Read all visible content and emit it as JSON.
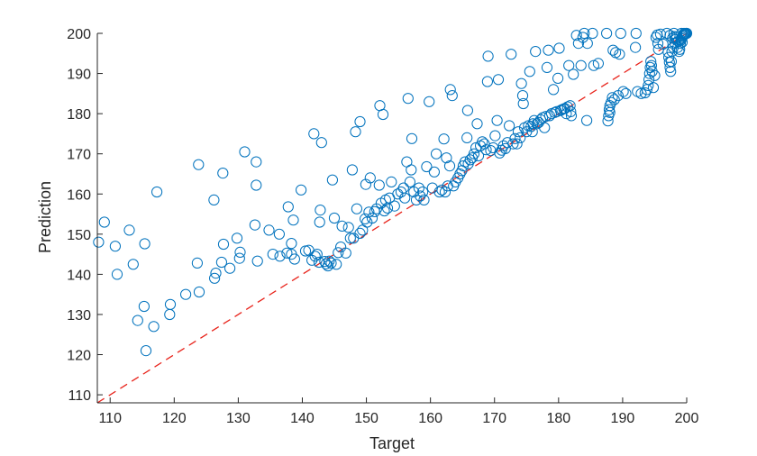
{
  "chart_data": {
    "type": "scatter",
    "xlabel": "Target",
    "ylabel": "Prediction",
    "xlim": [
      108,
      200
    ],
    "ylim": [
      108,
      200
    ],
    "xticks": [
      110,
      120,
      130,
      140,
      150,
      160,
      170,
      180,
      190,
      200
    ],
    "yticks": [
      110,
      120,
      130,
      140,
      150,
      160,
      170,
      180,
      190,
      200
    ],
    "grid": false,
    "marker_color": "#0072BD",
    "reference_line": {
      "style": "dashed",
      "color": "#e8221a",
      "from": [
        108,
        108
      ],
      "to": [
        200,
        200
      ]
    },
    "series": [
      {
        "points": [
          [
            108.2,
            148
          ],
          [
            109.1,
            153
          ],
          [
            110.8,
            147
          ],
          [
            111.1,
            140
          ],
          [
            113,
            151
          ],
          [
            113.6,
            142.5
          ],
          [
            114.3,
            128.5
          ],
          [
            115.4,
            147.6
          ],
          [
            115.3,
            132
          ],
          [
            115.6,
            121
          ],
          [
            116.8,
            127
          ],
          [
            117.3,
            160.5
          ],
          [
            119.3,
            130
          ],
          [
            119.4,
            132.5
          ],
          [
            121.8,
            135
          ],
          [
            123.6,
            142.8
          ],
          [
            123.8,
            167.3
          ],
          [
            123.9,
            135.6
          ],
          [
            126.2,
            158.5
          ],
          [
            126.3,
            139
          ],
          [
            126.5,
            140.3
          ],
          [
            127.4,
            143
          ],
          [
            127.6,
            165.2
          ],
          [
            127.7,
            147.5
          ],
          [
            128.7,
            141.5
          ],
          [
            129.8,
            149
          ],
          [
            130.2,
            144
          ],
          [
            130.3,
            145.5
          ],
          [
            131,
            170.5
          ],
          [
            132.6,
            152.3
          ],
          [
            132.8,
            168
          ],
          [
            132.8,
            162.2
          ],
          [
            133,
            143.3
          ],
          [
            134.8,
            151
          ],
          [
            135.4,
            145
          ],
          [
            136.4,
            150
          ],
          [
            136.5,
            144.5
          ],
          [
            137.6,
            145.3
          ],
          [
            137.8,
            156.8
          ],
          [
            138.3,
            147.7
          ],
          [
            138.6,
            153.5
          ],
          [
            138.3,
            145
          ],
          [
            138.8,
            143.8
          ],
          [
            139.8,
            161
          ],
          [
            140.5,
            145.8
          ],
          [
            141,
            146
          ],
          [
            141.5,
            143.5
          ],
          [
            141.8,
            175
          ],
          [
            142,
            144.5
          ],
          [
            142.3,
            145
          ],
          [
            142.6,
            143
          ],
          [
            142.7,
            153
          ],
          [
            142.8,
            156
          ],
          [
            143,
            172.8
          ],
          [
            143.5,
            143.2
          ],
          [
            143.7,
            142.6
          ],
          [
            144,
            142.1
          ],
          [
            144.2,
            143.3
          ],
          [
            144.5,
            142.8
          ],
          [
            144.7,
            163.5
          ],
          [
            145,
            154
          ],
          [
            145.3,
            142.5
          ],
          [
            145.6,
            145.4
          ],
          [
            146,
            146.8
          ],
          [
            146.2,
            152
          ],
          [
            146.8,
            145.3
          ],
          [
            147.2,
            151.7
          ],
          [
            147.5,
            149
          ],
          [
            147.8,
            166
          ],
          [
            148,
            149
          ],
          [
            148.3,
            175.5
          ],
          [
            148.5,
            156.3
          ],
          [
            149,
            178
          ],
          [
            149,
            150.2
          ],
          [
            149.4,
            151
          ],
          [
            149.8,
            153.8
          ],
          [
            149.9,
            162.4
          ],
          [
            150.1,
            153
          ],
          [
            150.4,
            155.5
          ],
          [
            150.6,
            164
          ],
          [
            150.9,
            154
          ],
          [
            151.3,
            155.6
          ],
          [
            151.6,
            156.3
          ],
          [
            152,
            162.2
          ],
          [
            152.1,
            182
          ],
          [
            152.3,
            157.7
          ],
          [
            152.6,
            179.8
          ],
          [
            152.8,
            155.8
          ],
          [
            153,
            158.5
          ],
          [
            153.3,
            156.5
          ],
          [
            153.6,
            159
          ],
          [
            153.9,
            163
          ],
          [
            154.4,
            157
          ],
          [
            154.9,
            160
          ],
          [
            155.4,
            160.5
          ],
          [
            155.8,
            161.5
          ],
          [
            156,
            159
          ],
          [
            156.3,
            168
          ],
          [
            156.5,
            183.8
          ],
          [
            156.8,
            163
          ],
          [
            157,
            166
          ],
          [
            157.1,
            173.8
          ],
          [
            157.4,
            160.5
          ],
          [
            157.8,
            158.5
          ],
          [
            158.2,
            161.5
          ],
          [
            158.4,
            159.5
          ],
          [
            158.8,
            160.5
          ],
          [
            159,
            158.5
          ],
          [
            159.4,
            166.8
          ],
          [
            159.8,
            183
          ],
          [
            160.3,
            161.5
          ],
          [
            160.6,
            165.5
          ],
          [
            160.9,
            170
          ],
          [
            161.4,
            160.5
          ],
          [
            161.8,
            161
          ],
          [
            162.1,
            173.7
          ],
          [
            162.3,
            160.5
          ],
          [
            162.5,
            169
          ],
          [
            162.7,
            162
          ],
          [
            163,
            167
          ],
          [
            163.1,
            186
          ],
          [
            163.4,
            184.5
          ],
          [
            163.6,
            162
          ],
          [
            163.9,
            163
          ],
          [
            164.3,
            164
          ],
          [
            164.6,
            165
          ],
          [
            164.9,
            165.8
          ],
          [
            165.1,
            167
          ],
          [
            165.4,
            168
          ],
          [
            165.7,
            174
          ],
          [
            165.8,
            180.8
          ],
          [
            165.9,
            167.5
          ],
          [
            166.2,
            168.5
          ],
          [
            166.5,
            169
          ],
          [
            166.8,
            170
          ],
          [
            167.1,
            171.5
          ],
          [
            167.3,
            177.5
          ],
          [
            167.5,
            169.5
          ],
          [
            167.8,
            172
          ],
          [
            168.1,
            173
          ],
          [
            168.4,
            172.5
          ],
          [
            168.7,
            171
          ],
          [
            168.9,
            188
          ],
          [
            169,
            194.3
          ],
          [
            169.4,
            170.8
          ],
          [
            169.8,
            171.5
          ],
          [
            170.1,
            174.5
          ],
          [
            170.4,
            178.3
          ],
          [
            170.6,
            188.5
          ],
          [
            170.8,
            170.2
          ],
          [
            171.1,
            170.9
          ],
          [
            171.4,
            172
          ],
          [
            171.7,
            171.3
          ],
          [
            172,
            172.8
          ],
          [
            172.3,
            177
          ],
          [
            172.6,
            194.8
          ],
          [
            172.9,
            172.5
          ],
          [
            173.2,
            173.8
          ],
          [
            173.5,
            172.5
          ],
          [
            173.7,
            175.5
          ],
          [
            174,
            174
          ],
          [
            174.2,
            187.5
          ],
          [
            174.4,
            184.5
          ],
          [
            174.5,
            182.5
          ],
          [
            174.7,
            176.5
          ],
          [
            175,
            175.5
          ],
          [
            175.3,
            177
          ],
          [
            175.5,
            190.5
          ],
          [
            175.7,
            176.8
          ],
          [
            175.9,
            175.5
          ],
          [
            176,
            177.5
          ],
          [
            176.2,
            178.3
          ],
          [
            176.4,
            195.5
          ],
          [
            176.6,
            177.5
          ],
          [
            176.9,
            177.8
          ],
          [
            177.2,
            178.5
          ],
          [
            177.5,
            179
          ],
          [
            177.8,
            176.5
          ],
          [
            178,
            179.3
          ],
          [
            178.2,
            191.5
          ],
          [
            178.4,
            195.8
          ],
          [
            178.6,
            179.5
          ],
          [
            178.9,
            180
          ],
          [
            179.2,
            186
          ],
          [
            179.4,
            180.3
          ],
          [
            179.7,
            180.5
          ],
          [
            179.9,
            188.8
          ],
          [
            180.1,
            196.3
          ],
          [
            180.3,
            180.8
          ],
          [
            180.5,
            181
          ],
          [
            180.8,
            181.2
          ],
          [
            181,
            181.3
          ],
          [
            181.2,
            180
          ],
          [
            181.4,
            181.7
          ],
          [
            181.6,
            192
          ],
          [
            181.8,
            182
          ],
          [
            181.9,
            180.5
          ],
          [
            182,
            179.5
          ],
          [
            182.3,
            189.8
          ],
          [
            182.8,
            199.5
          ],
          [
            183.1,
            197.5
          ],
          [
            183.5,
            192
          ],
          [
            183.8,
            199
          ],
          [
            184,
            200
          ],
          [
            184.4,
            178.3
          ],
          [
            184.5,
            197.5
          ],
          [
            185.3,
            200
          ],
          [
            185.5,
            192
          ],
          [
            186.2,
            192.5
          ],
          [
            187.5,
            200
          ],
          [
            187.7,
            178.2
          ],
          [
            187.8,
            179.5
          ],
          [
            187.9,
            181
          ],
          [
            188,
            182
          ],
          [
            188,
            180.3
          ],
          [
            188.2,
            182.8
          ],
          [
            188.5,
            195.8
          ],
          [
            188.4,
            184
          ],
          [
            188.7,
            183.5
          ],
          [
            188.9,
            195.2
          ],
          [
            189.3,
            184.5
          ],
          [
            189.5,
            194.8
          ],
          [
            189.7,
            200
          ],
          [
            190.1,
            185.5
          ],
          [
            190.5,
            185
          ],
          [
            192,
            196.5
          ],
          [
            192.1,
            200
          ],
          [
            192.3,
            185.5
          ],
          [
            192.9,
            185
          ],
          [
            193.5,
            185.2
          ],
          [
            193.8,
            186
          ],
          [
            194,
            187
          ],
          [
            194.1,
            188.5
          ],
          [
            194.2,
            190
          ],
          [
            194.3,
            191.5
          ],
          [
            194.4,
            193
          ],
          [
            194.5,
            192
          ],
          [
            194.6,
            190.5
          ],
          [
            194.8,
            186.5
          ],
          [
            195,
            189.5
          ],
          [
            195.2,
            199
          ],
          [
            195.4,
            199.6
          ],
          [
            195.5,
            197.5
          ],
          [
            195.6,
            196
          ],
          [
            195.9,
            199.8
          ],
          [
            196.3,
            197.3
          ],
          [
            196.9,
            200
          ],
          [
            197.1,
            195.3
          ],
          [
            197.2,
            194
          ],
          [
            197.3,
            192.8
          ],
          [
            197.4,
            191.5
          ],
          [
            197.5,
            190.5
          ],
          [
            197.6,
            193
          ],
          [
            197.7,
            195.5
          ],
          [
            197.9,
            196.5
          ],
          [
            198,
            200
          ],
          [
            198.2,
            197.5
          ],
          [
            198.3,
            198.5
          ],
          [
            198.4,
            199
          ],
          [
            198.6,
            196.5
          ],
          [
            198.8,
            195.5
          ],
          [
            198.9,
            196
          ],
          [
            199,
            197.5
          ],
          [
            199.1,
            198.3
          ],
          [
            199.2,
            198.7
          ],
          [
            199.3,
            199
          ],
          [
            199.4,
            199.3
          ],
          [
            199.5,
            199.5
          ],
          [
            199.6,
            199.7
          ],
          [
            199.7,
            199.8
          ],
          [
            199.8,
            199.9
          ],
          [
            199.9,
            200
          ],
          [
            200,
            200
          ],
          [
            199.3,
            197.8
          ],
          [
            198.7,
            198
          ],
          [
            198.1,
            199.2
          ],
          [
            197.8,
            198.8
          ],
          [
            197.4,
            199.5
          ],
          [
            199.6,
            200
          ],
          [
            199.2,
            200
          ]
        ]
      }
    ]
  }
}
